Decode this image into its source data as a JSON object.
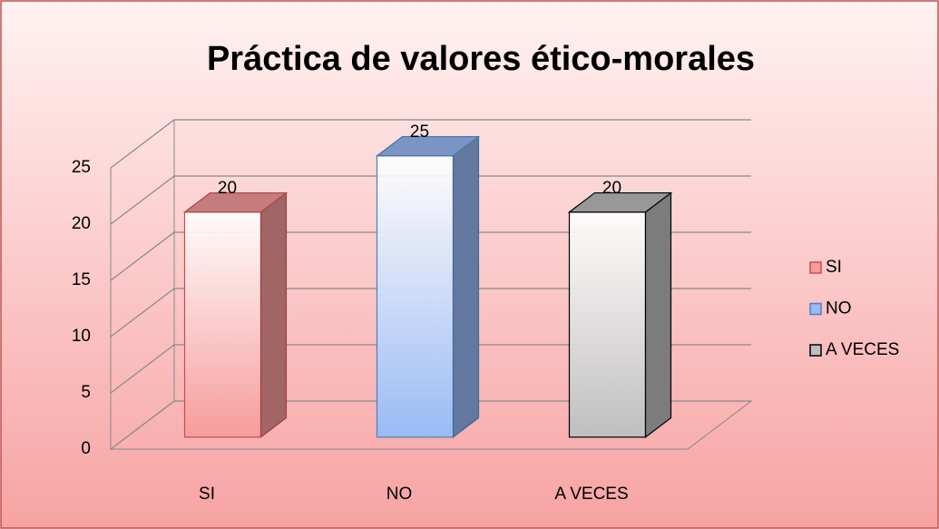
{
  "chart_data": {
    "type": "bar3d",
    "title": "Práctica de valores ético-morales",
    "categories": [
      "SI",
      "NO",
      "A VECES"
    ],
    "values": [
      20,
      25,
      20
    ],
    "colors": [
      "#f79b9b",
      "#99bbf5",
      "#bfbfbf"
    ],
    "edge_colors": [
      "#c0504d",
      "#4f81bd",
      "#000000"
    ],
    "ylim": [
      0,
      25
    ],
    "yticks": [
      0,
      5,
      10,
      15,
      20,
      25
    ],
    "grid": true,
    "legend": "right"
  }
}
